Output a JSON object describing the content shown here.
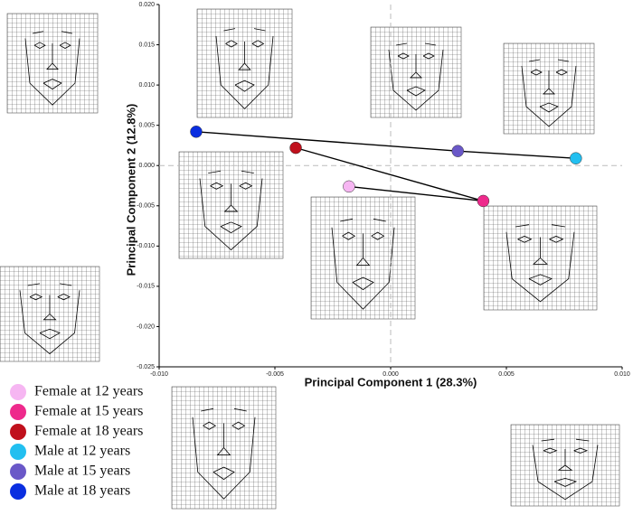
{
  "chart_data": {
    "type": "scatter",
    "x_label": "Principal Component 1 (28.3%)",
    "y_label": "Principal Component 2 (12.8%)",
    "xlim": [
      -0.01,
      0.01
    ],
    "ylim": [
      -0.025,
      0.02
    ],
    "xticks": [
      {
        "value": -0.01,
        "label": "-0.010"
      },
      {
        "value": -0.005,
        "label": "-0.005"
      },
      {
        "value": 0,
        "label": "0.000"
      },
      {
        "value": 0.005,
        "label": "0.005"
      },
      {
        "value": 0.01,
        "label": "0.010"
      }
    ],
    "yticks": [
      {
        "value": 0.02,
        "label": "0.020"
      },
      {
        "value": 0.015,
        "label": "0.015"
      },
      {
        "value": 0.01,
        "label": "0.010"
      },
      {
        "value": 0.005,
        "label": "0.005"
      },
      {
        "value": 0,
        "label": "0.000"
      },
      {
        "value": -0.005,
        "label": "-0.005"
      },
      {
        "value": -0.01,
        "label": "-0.010"
      },
      {
        "value": -0.015,
        "label": "-0.015"
      },
      {
        "value": -0.02,
        "label": "-0.020"
      },
      {
        "value": -0.025,
        "label": "-0.025"
      }
    ],
    "series": [
      {
        "name": "Female at 12 years",
        "color": "#f6b6f2",
        "x": [
          -0.0018
        ],
        "values": [
          -0.0026
        ]
      },
      {
        "name": "Female at 15 years",
        "color": "#ee2a8c",
        "x": [
          0.004
        ],
        "values": [
          -0.0044
        ]
      },
      {
        "name": "Female at 18 years",
        "color": "#c0101c",
        "x": [
          -0.0041
        ],
        "values": [
          0.0022
        ]
      },
      {
        "name": "Male at 12 years",
        "color": "#22bff0",
        "x": [
          0.008
        ],
        "values": [
          0.0009
        ]
      },
      {
        "name": "Male at 15 years",
        "color": "#6a58c8",
        "x": [
          0.0029
        ],
        "values": [
          0.0018
        ]
      },
      {
        "name": "Male at 18 years",
        "color": "#0a2ee0",
        "x": [
          -0.0084
        ],
        "values": [
          0.0042
        ]
      }
    ]
  }
}
